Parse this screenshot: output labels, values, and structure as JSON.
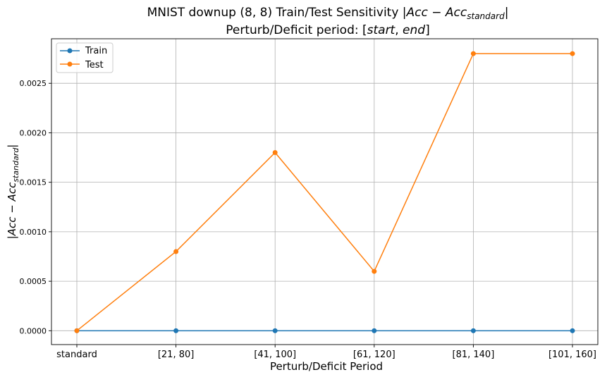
{
  "chart_data": {
    "type": "line",
    "title_line1": "MNIST downup (8, 8) Train/Test Sensitivity |Acc − Acc_standard|",
    "title_line2": "Perturb/Deficit period: [start, end]",
    "xlabel": "Perturb/Deficit Period",
    "ylabel": "|Acc − Acc_standard|",
    "categories": [
      "standard",
      "[21, 80]",
      "[41, 100]",
      "[61, 120]",
      "[81, 140]",
      "[101, 160]"
    ],
    "ylim": [
      -0.00014,
      0.00295
    ],
    "yticks": [
      "0.0000",
      "0.0005",
      "0.0010",
      "0.0015",
      "0.0020",
      "0.0025"
    ],
    "ytick_values": [
      0,
      0.0005,
      0.001,
      0.0015,
      0.002,
      0.0025
    ],
    "grid": true,
    "legend_position": "top-left",
    "series": [
      {
        "name": "Train",
        "color": "#1f77b4",
        "values": [
          0,
          0,
          0,
          0,
          0,
          0
        ]
      },
      {
        "name": "Test",
        "color": "#ff7f0e",
        "values": [
          0,
          0.0008,
          0.0018,
          0.0006,
          0.0028,
          0.0028
        ]
      }
    ]
  }
}
